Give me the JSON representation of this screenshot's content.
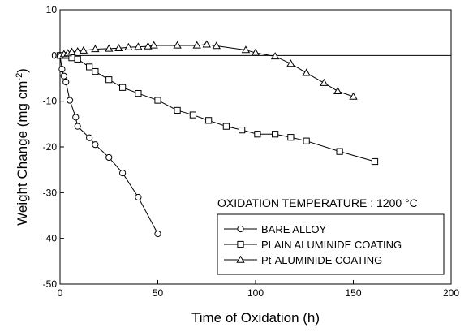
{
  "chart_data": {
    "type": "line",
    "xlabel": "Time of Oxidation (h)",
    "ylabel_main": "Weight Change (mg cm",
    "ylabel_sup": "-2",
    "ylabel_close": ")",
    "xlim": [
      0,
      200
    ],
    "ylim": [
      -50,
      10
    ],
    "x_ticks": [
      0,
      50,
      100,
      150,
      200
    ],
    "y_ticks": [
      10,
      0,
      -10,
      -20,
      -30,
      -40,
      -50
    ],
    "x_tick_labels": [
      "0",
      "50",
      "100",
      "150",
      "200"
    ],
    "y_tick_labels": [
      "10",
      "0",
      "-10",
      "-20",
      "-30",
      "-40",
      "-50"
    ],
    "grid": false,
    "zero_line": true,
    "annotation": "OXIDATION TEMPERATURE : 1200 °C",
    "legend_placement": "lower-right",
    "series": [
      {
        "name": "BARE ALLOY",
        "marker": "circle",
        "x": [
          0,
          1,
          2,
          3,
          5,
          8,
          9,
          15,
          18,
          25,
          32,
          40,
          50
        ],
        "y": [
          0,
          -3,
          -4.5,
          -5.8,
          -9.8,
          -13.5,
          -15.5,
          -18,
          -19.5,
          -22.3,
          -25.7,
          -31,
          -39
        ]
      },
      {
        "name": "PLAIN ALUMINIDE COATING",
        "marker": "square",
        "x": [
          0,
          3,
          6,
          9,
          15,
          18,
          25,
          32,
          40,
          50,
          60,
          68,
          76,
          85,
          93,
          101,
          110,
          118,
          126,
          143,
          161
        ],
        "y": [
          0,
          0,
          -0.5,
          -0.8,
          -2.5,
          -3.5,
          -5.3,
          -7,
          -8.3,
          -9.8,
          -12,
          -13,
          -14.2,
          -15.5,
          -16.3,
          -17.2,
          -17.2,
          -17.9,
          -18.7,
          -21,
          -23.2
        ]
      },
      {
        "name": "Pt-ALUMINIDE COATING",
        "marker": "triangle",
        "x": [
          0,
          2,
          4,
          6,
          9,
          12,
          18,
          25,
          30,
          35,
          40,
          45,
          48,
          60,
          70,
          75,
          80,
          95,
          100,
          110,
          118,
          126,
          135,
          142,
          150
        ],
        "y": [
          0,
          0.3,
          0.5,
          0.8,
          0.9,
          1.1,
          1.4,
          1.5,
          1.6,
          1.8,
          1.9,
          2.0,
          2.2,
          2.2,
          2.2,
          2.4,
          2.1,
          1.2,
          0.6,
          -0.2,
          -1.8,
          -3.8,
          -6,
          -7.8,
          -9
        ]
      }
    ]
  }
}
